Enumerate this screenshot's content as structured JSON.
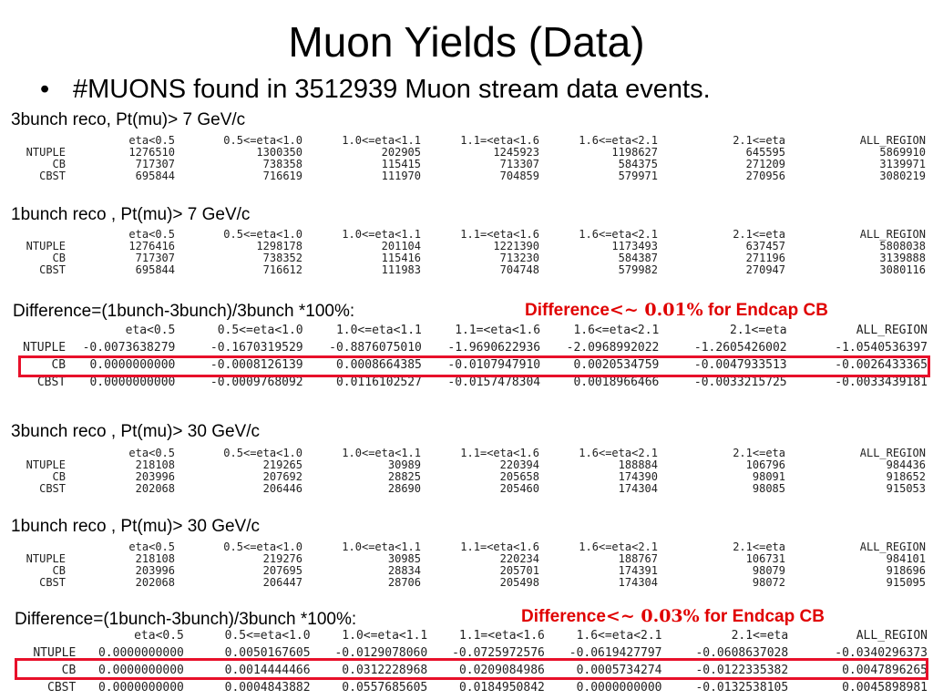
{
  "title": "Muon Yields (Data)",
  "bullet": "#MUONS found in 3512939 Muon stream data events.",
  "columns": [
    "eta<0.5",
    "0.5<=eta<1.0",
    "1.0<=eta<1.1",
    "1.1=<eta<1.6",
    "1.6<=eta<2.1",
    "2.1<=eta",
    "ALL_REGION"
  ],
  "sections": [
    {
      "label": "3bunch reco,  Pt(mu)> 7 GeV/c",
      "rows": [
        {
          "name": "NTUPLE",
          "values": [
            "1276510",
            "1300350",
            "202905",
            "1245923",
            "1198627",
            "645595",
            "5869910"
          ]
        },
        {
          "name": "CB",
          "values": [
            "717307",
            "738358",
            "115415",
            "713307",
            "584375",
            "271209",
            "3139971"
          ]
        },
        {
          "name": "CBST",
          "values": [
            "695844",
            "716619",
            "111970",
            "704859",
            "579971",
            "270956",
            "3080219"
          ]
        }
      ]
    },
    {
      "label": "1bunch reco ,  Pt(mu)> 7 GeV/c",
      "rows": [
        {
          "name": "NTUPLE",
          "values": [
            "1276416",
            "1298178",
            "201104",
            "1221390",
            "1173493",
            "637457",
            "5808038"
          ]
        },
        {
          "name": "CB",
          "values": [
            "717307",
            "738352",
            "115416",
            "713230",
            "584387",
            "271196",
            "3139888"
          ]
        },
        {
          "name": "CBST",
          "values": [
            "695844",
            "716612",
            "111983",
            "704748",
            "579982",
            "270947",
            "3080116"
          ]
        }
      ]
    },
    {
      "label": "Difference=(1bunch-3bunch)/3bunch *100%:",
      "note_prefix": "Difference",
      "note_math": "<~ 0.01%",
      "note_suffix": " for Endcap CB",
      "rows": [
        {
          "name": "NTUPLE",
          "values": [
            "-0.0073638279",
            "-0.1670319529",
            "-0.8876075010",
            "-1.9690622936",
            "-2.0968992022",
            "-1.2605426002",
            "-1.0540536397"
          ]
        },
        {
          "name": "CB",
          "values": [
            "0.0000000000",
            "-0.0008126139",
            "0.0008664385",
            "-0.0107947910",
            "0.0020534759",
            "-0.0047933513",
            "-0.0026433365"
          ]
        },
        {
          "name": "CBST",
          "values": [
            "0.0000000000",
            "-0.0009768092",
            "0.0116102527",
            "-0.0157478304",
            "0.0018966466",
            "-0.0033215725",
            "-0.0033439181"
          ]
        }
      ]
    },
    {
      "label": "3bunch reco ,  Pt(mu)> 30 GeV/c",
      "rows": [
        {
          "name": "NTUPLE",
          "values": [
            "218108",
            "219265",
            "30989",
            "220394",
            "188884",
            "106796",
            "984436"
          ]
        },
        {
          "name": "CB",
          "values": [
            "203996",
            "207692",
            "28825",
            "205658",
            "174390",
            "98091",
            "918652"
          ]
        },
        {
          "name": "CBST",
          "values": [
            "202068",
            "206446",
            "28690",
            "205460",
            "174304",
            "98085",
            "915053"
          ]
        }
      ]
    },
    {
      "label": "1bunch reco ,  Pt(mu)> 30 GeV/c",
      "rows": [
        {
          "name": "NTUPLE",
          "values": [
            "218108",
            "219276",
            "30985",
            "220234",
            "188767",
            "106731",
            "984101"
          ]
        },
        {
          "name": "CB",
          "values": [
            "203996",
            "207695",
            "28834",
            "205701",
            "174391",
            "98079",
            "918696"
          ]
        },
        {
          "name": "CBST",
          "values": [
            "202068",
            "206447",
            "28706",
            "205498",
            "174304",
            "98072",
            "915095"
          ]
        }
      ]
    },
    {
      "label": "Difference=(1bunch-3bunch)/3bunch *100%:",
      "note_prefix": "Difference",
      "note_math": "<~ 0.03%",
      "note_suffix": " for Endcap CB",
      "rows": [
        {
          "name": "NTUPLE",
          "values": [
            "0.0000000000",
            "0.0050167605",
            "-0.0129078060",
            "-0.0725972576",
            "-0.0619427797",
            "-0.0608637028",
            "-0.0340296373"
          ]
        },
        {
          "name": "CB",
          "values": [
            "0.0000000000",
            "0.0014444466",
            "0.0312228968",
            "0.0209084986",
            "0.0005734274",
            "-0.0122335382",
            "0.0047896265"
          ]
        },
        {
          "name": "CBST",
          "values": [
            "0.0000000000",
            "0.0004843882",
            "0.0557685605",
            "0.0184950842",
            "0.0000000000",
            "-0.0132538105",
            "0.0045898981"
          ]
        }
      ]
    }
  ]
}
